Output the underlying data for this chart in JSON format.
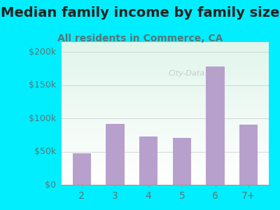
{
  "title": "Median family income by family size",
  "subtitle": "All residents in Commerce, CA",
  "categories": [
    "2",
    "3",
    "4",
    "5",
    "6",
    "7+"
  ],
  "values": [
    47000,
    92000,
    73000,
    71000,
    178000,
    91000
  ],
  "bar_color": "#b8a0cc",
  "title_fontsize": 14,
  "subtitle_fontsize": 10,
  "yticks": [
    0,
    50000,
    100000,
    150000,
    200000
  ],
  "ytick_labels": [
    "$0",
    "$50k",
    "$100k",
    "$150k",
    "$200k"
  ],
  "ylim": [
    0,
    215000
  ],
  "background_outer": "#00eeff",
  "grid_color": "#cccccc",
  "title_color": "#222222",
  "subtitle_color": "#557777",
  "tick_color": "#557777",
  "watermark": "City-Data.com",
  "watermark_color": "#aaaaaa"
}
